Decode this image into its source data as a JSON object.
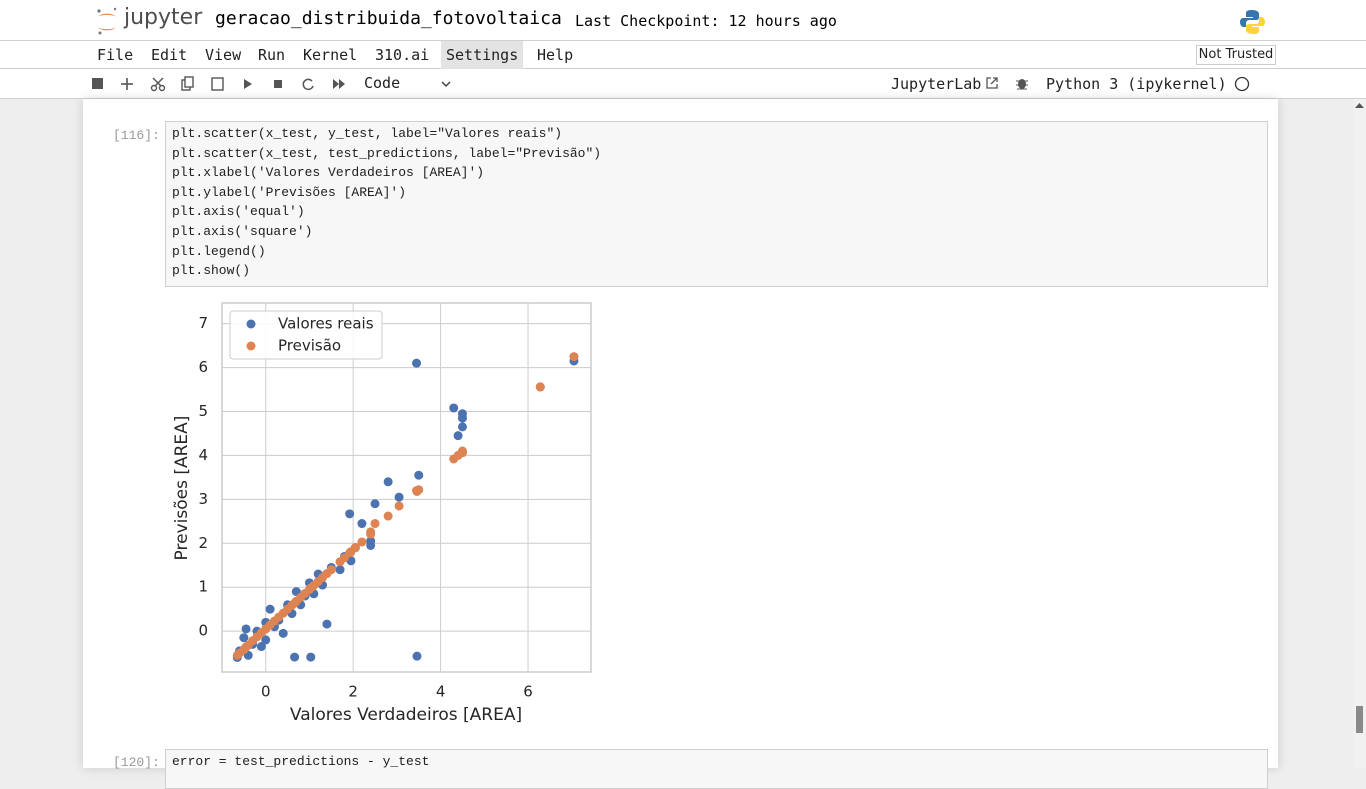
{
  "header": {
    "logo": "jupyter",
    "notebook_title": "geracao_distribuida_fotovoltaica",
    "checkpoint": "Last Checkpoint: 12 hours ago"
  },
  "menu": [
    "File",
    "Edit",
    "View",
    "Run",
    "Kernel",
    "310.ai",
    "Settings",
    "Help"
  ],
  "trust": "Not Trusted",
  "toolbar": {
    "cell_type": "Code",
    "jupyterlab": "JupyterLab",
    "kernel": "Python 3 (ipykernel)"
  },
  "cells": [
    {
      "prompt": "[116]:",
      "code": [
        "plt.scatter(x_test, y_test, label=\"Valores reais\")",
        "plt.scatter(x_test, test_predictions, label=\"Previsão\")",
        "plt.xlabel('Valores Verdadeiros [AREA]')",
        "plt.ylabel('Previsões [AREA]')",
        "plt.axis('equal')",
        "plt.axis('square')",
        "plt.legend()",
        "plt.show()"
      ]
    },
    {
      "prompt": "[120]:",
      "code": [
        "error = test_predictions - y_test"
      ]
    }
  ],
  "chart_data": {
    "type": "scatter",
    "xlabel": "Valores Verdadeiros [AREA]",
    "ylabel": "Previsões [AREA]",
    "x": [
      -0.65,
      -0.6,
      -0.5,
      -0.45,
      -0.4,
      -0.3,
      -0.2,
      -0.1,
      0.0,
      0.0,
      0.1,
      0.2,
      0.3,
      0.4,
      0.5,
      0.6,
      0.66,
      0.7,
      0.8,
      0.9,
      1.0,
      1.03,
      1.1,
      1.2,
      1.3,
      1.4,
      1.5,
      1.7,
      1.8,
      1.92,
      1.95,
      2.05,
      2.2,
      2.4,
      2.4,
      2.5,
      2.8,
      3.05,
      3.45,
      3.46,
      3.5,
      4.3,
      4.4,
      4.5,
      4.5,
      4.5,
      6.28,
      7.05
    ],
    "series": [
      {
        "name": "Valores reais",
        "color": "#4c72b0",
        "values": [
          -0.6,
          -0.45,
          -0.15,
          0.05,
          -0.55,
          -0.3,
          0.0,
          -0.35,
          0.2,
          -0.2,
          0.5,
          0.1,
          0.25,
          -0.05,
          0.6,
          0.4,
          -0.59,
          0.9,
          0.6,
          0.8,
          1.1,
          -0.59,
          0.85,
          1.3,
          1.05,
          0.16,
          1.45,
          1.4,
          1.7,
          2.67,
          1.6,
          1.9,
          2.45,
          2.05,
          1.95,
          2.9,
          3.4,
          3.05,
          6.1,
          -0.57,
          3.55,
          5.08,
          4.45,
          4.65,
          4.85,
          4.95,
          5.56,
          6.15
        ]
      },
      {
        "name": "Previsão",
        "color": "#dd8452",
        "values": [
          -0.55,
          -0.5,
          -0.42,
          -0.36,
          -0.32,
          -0.22,
          -0.13,
          -0.04,
          0.05,
          0.05,
          0.14,
          0.23,
          0.32,
          0.41,
          0.5,
          0.59,
          0.64,
          0.68,
          0.77,
          0.86,
          0.95,
          0.98,
          1.04,
          1.13,
          1.22,
          1.31,
          1.4,
          1.58,
          1.67,
          1.78,
          1.81,
          1.9,
          2.03,
          2.21,
          2.26,
          2.45,
          2.62,
          2.85,
          3.2,
          3.18,
          3.22,
          3.92,
          4.0,
          4.08,
          4.06,
          4.1,
          5.56,
          6.25
        ]
      }
    ],
    "xlim": [
      -1.0,
      7.44
    ],
    "ylim": [
      -0.93,
      7.47
    ],
    "xticks": [
      0,
      2,
      4,
      6
    ],
    "yticks": [
      0,
      1,
      2,
      3,
      4,
      5,
      6,
      7
    ],
    "grid": true,
    "legend": "upper left"
  }
}
